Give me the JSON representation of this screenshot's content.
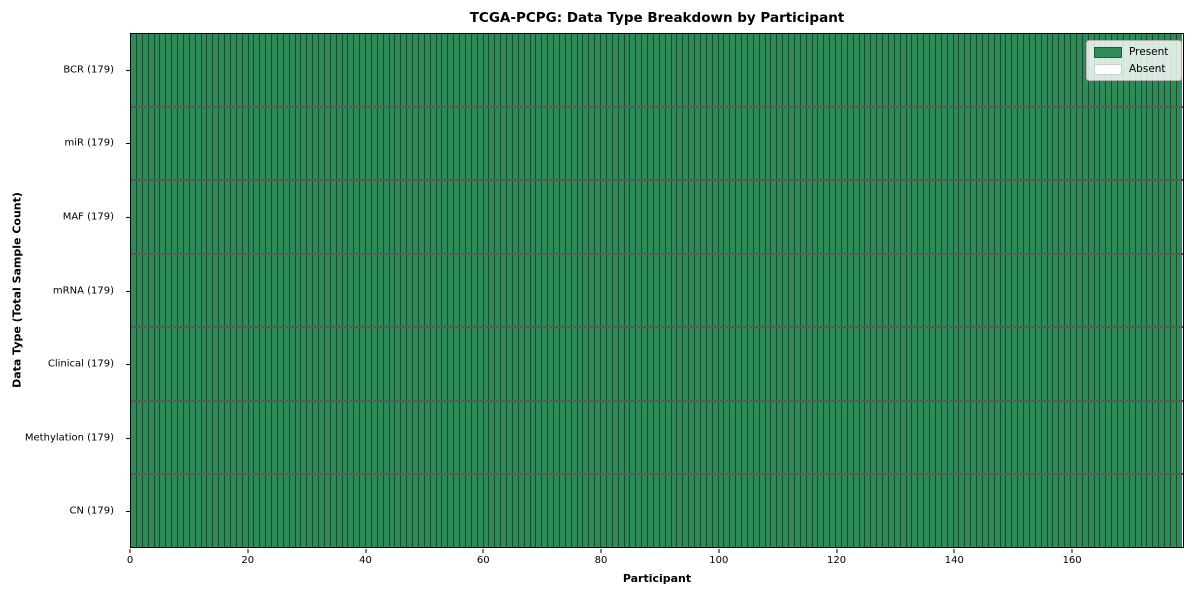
{
  "chart_data": {
    "type": "heatmap",
    "title": "TCGA-PCPG: Data Type Breakdown by Participant",
    "xlabel": "Participant",
    "ylabel": "Data Type (Total Sample Count)",
    "n_participants": 179,
    "xlim": [
      0,
      179
    ],
    "x_ticks": [
      0,
      20,
      40,
      60,
      80,
      100,
      120,
      140,
      160
    ],
    "grid": false,
    "legend_position": "upper right",
    "rows": [
      {
        "label": "BCR (179)",
        "data_type": "BCR",
        "total_samples": 179,
        "present_count": 179,
        "absent_count": 0
      },
      {
        "label": "miR (179)",
        "data_type": "miR",
        "total_samples": 179,
        "present_count": 179,
        "absent_count": 0
      },
      {
        "label": "MAF (179)",
        "data_type": "MAF",
        "total_samples": 179,
        "present_count": 179,
        "absent_count": 0
      },
      {
        "label": "mRNA (179)",
        "data_type": "mRNA",
        "total_samples": 179,
        "present_count": 179,
        "absent_count": 0
      },
      {
        "label": "Clinical (179)",
        "data_type": "Clinical",
        "total_samples": 179,
        "present_count": 179,
        "absent_count": 0
      },
      {
        "label": "Methylation (179)",
        "data_type": "Methylation",
        "total_samples": 179,
        "present_count": 179,
        "absent_count": 0
      },
      {
        "label": "CN (179)",
        "data_type": "CN",
        "total_samples": 179,
        "present_count": 179,
        "absent_count": 0
      }
    ],
    "legend": [
      {
        "label": "Present",
        "color": "#2e8b57"
      },
      {
        "label": "Absent",
        "color": "#ffffff"
      }
    ],
    "colors": {
      "present": "#2e8b57",
      "absent": "#ffffff",
      "cell_edge": "#000000"
    }
  }
}
